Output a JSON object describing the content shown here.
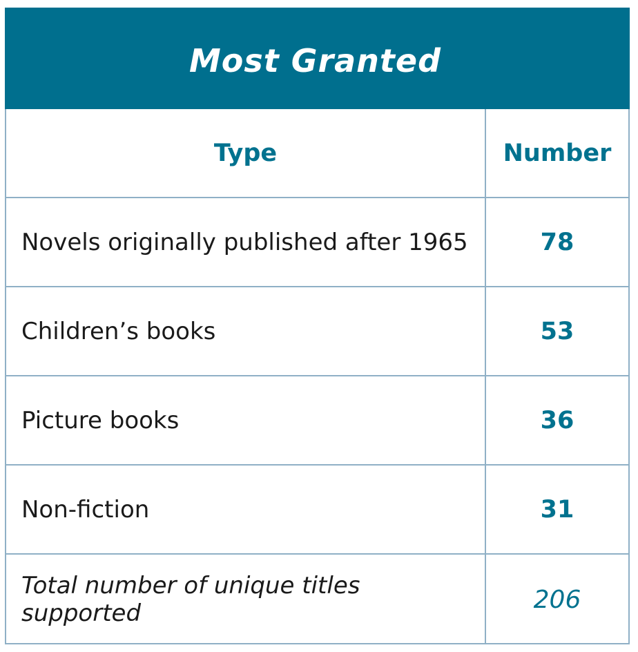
{
  "table": {
    "title": "Most Granted",
    "headers": {
      "type": "Type",
      "number": "Number"
    },
    "rows": [
      {
        "type": "Novels originally published after 1965",
        "number": "78"
      },
      {
        "type": "Children’s books",
        "number": "53"
      },
      {
        "type": "Picture books",
        "number": "36"
      },
      {
        "type": "Non-fiction",
        "number": "31"
      }
    ],
    "total": {
      "type": "Total number of unique titles supported",
      "number": "206"
    }
  },
  "colors": {
    "title_background": "#006f8e",
    "accent_text": "#00728f",
    "border": "#8fb0c6",
    "body_text": "#1a1a1a"
  }
}
